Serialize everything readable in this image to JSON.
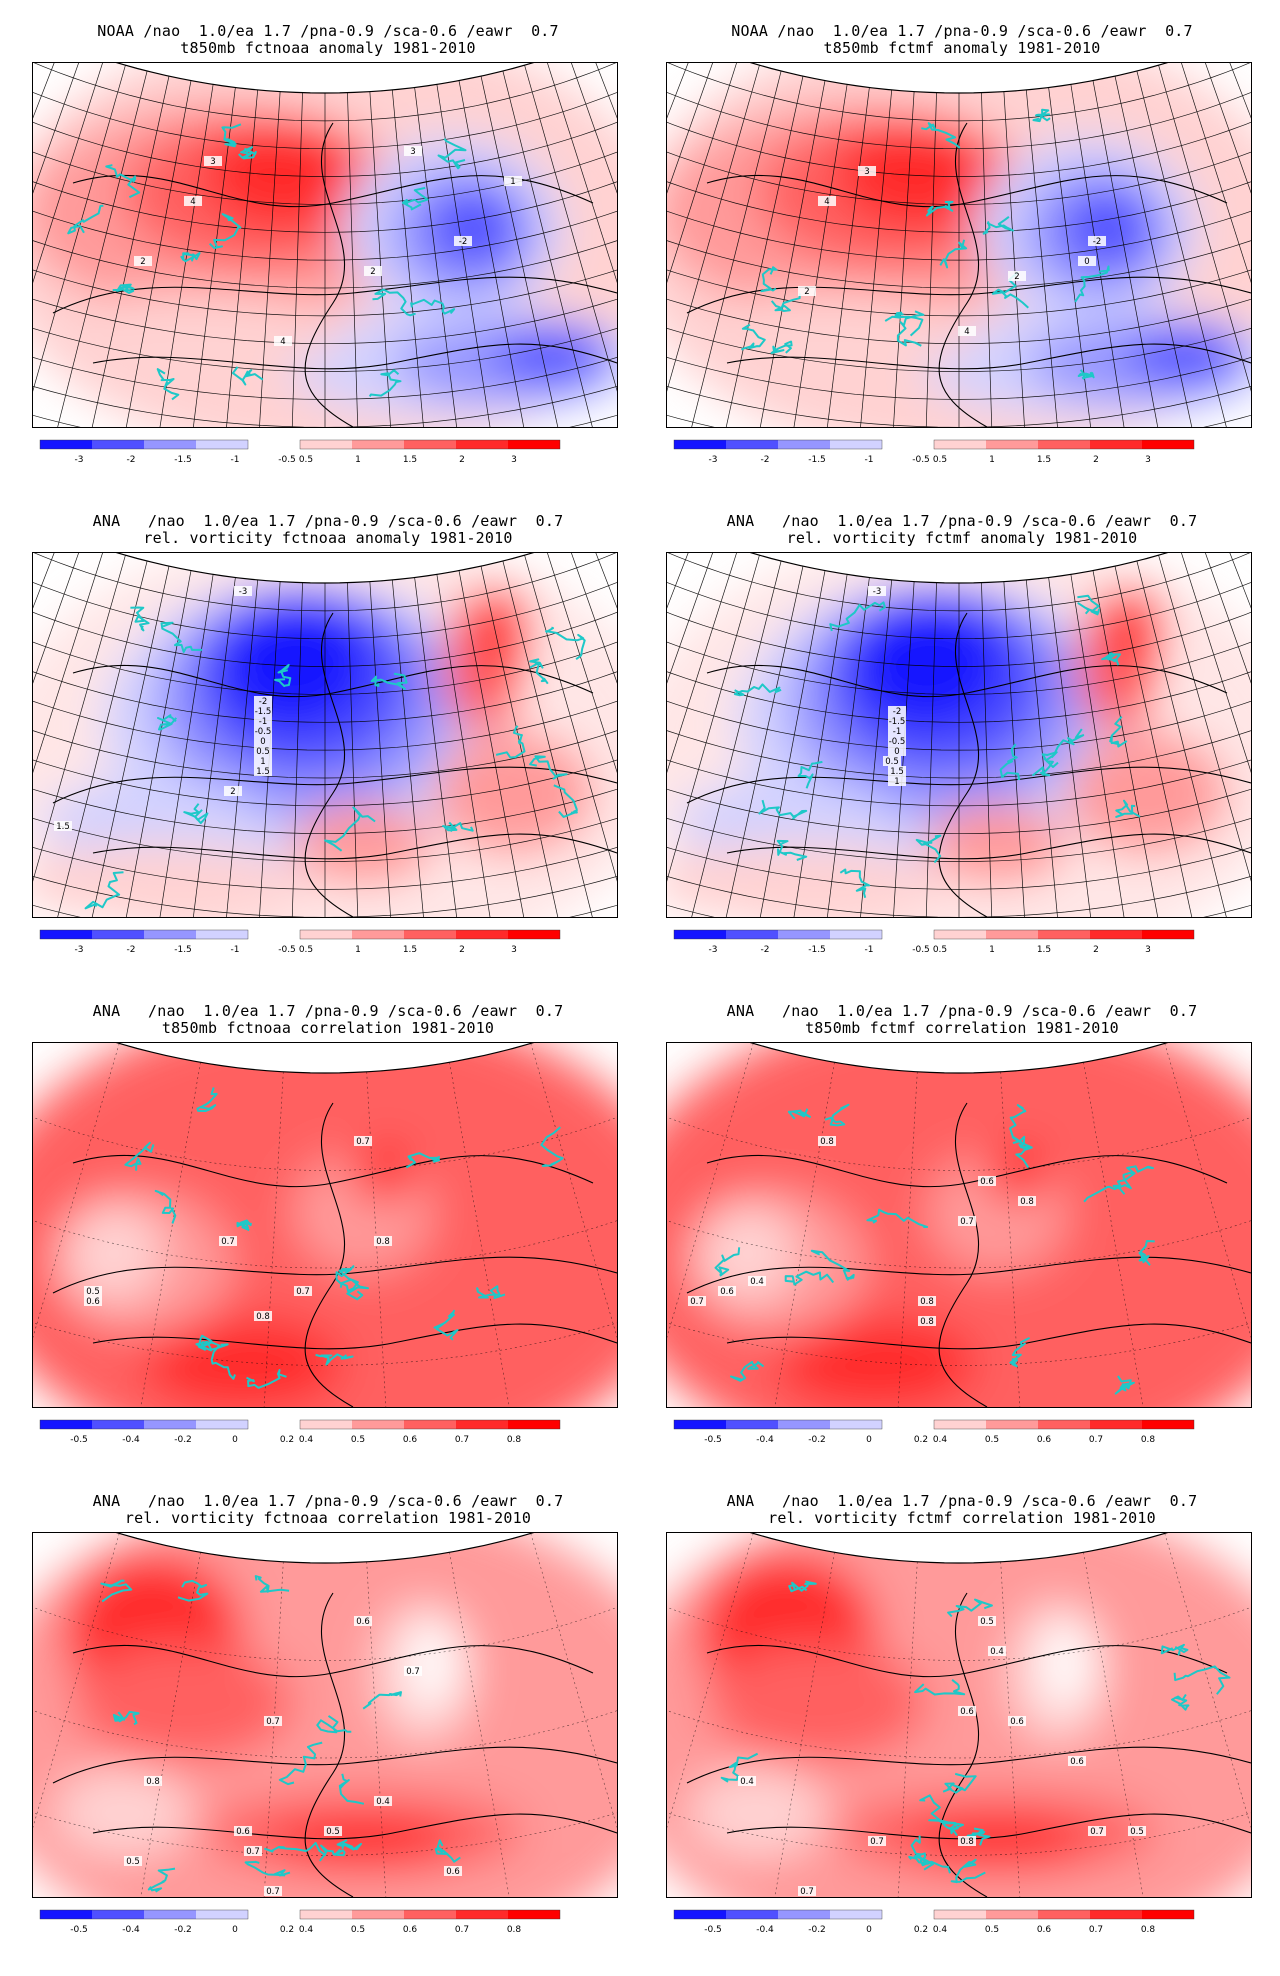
{
  "panels": [
    {
      "id": "p1",
      "title1": "NOAA /nao  1.0/ea 1.7 /pna-0.9 /sca-0.6 /eawr  0.7",
      "title2": "t850mb fctnoaa anomaly 1981-2010",
      "variant": "anomaly",
      "colorbar": [
        "-3",
        "-2",
        "-1.5",
        "-1",
        "-0.5",
        "0.5",
        "1",
        "1.5",
        "2",
        "3"
      ],
      "contour_labels": [
        "4",
        "-2",
        "2",
        "4",
        "3",
        "3",
        "2",
        "1"
      ]
    },
    {
      "id": "p2",
      "title1": "NOAA /nao  1.0/ea 1.7 /pna-0.9 /sca-0.6 /eawr  0.7",
      "title2": "t850mb fctmf anomaly 1981-2010",
      "variant": "anomaly",
      "colorbar": [
        "-3",
        "-2",
        "-1.5",
        "-1",
        "-0.5",
        "0.5",
        "1",
        "1.5",
        "2",
        "3"
      ],
      "contour_labels": [
        "4",
        "-2",
        "0",
        "2",
        "4",
        "3",
        "2"
      ]
    },
    {
      "id": "p3",
      "title1": "ANA   /nao  1.0/ea 1.7 /pna-0.9 /sca-0.6 /eawr  0.7",
      "title2": "rel. vorticity fctnoaa anomaly 1981-2010",
      "variant": "vorticity",
      "colorbar": [
        "-3",
        "-2",
        "-1.5",
        "-1",
        "-0.5",
        "0.5",
        "1",
        "1.5",
        "2",
        "3"
      ],
      "contour_labels": [
        "-3",
        "-2",
        "-1.5",
        "-1",
        "-0.5",
        "0",
        "0.5",
        "1",
        "1.5",
        "2",
        "1.5"
      ]
    },
    {
      "id": "p4",
      "title1": "ANA   /nao  1.0/ea 1.7 /pna-0.9 /sca-0.6 /eawr  0.7",
      "title2": "rel. vorticity fctmf anomaly 1981-2010",
      "variant": "vorticity",
      "colorbar": [
        "-3",
        "-2",
        "-1.5",
        "-1",
        "-0.5",
        "0.5",
        "1",
        "1.5",
        "2",
        "3"
      ],
      "contour_labels": [
        "-3",
        "-2",
        "-1.5",
        "-1",
        "-0.5",
        "0",
        "0.5",
        "1",
        "1.5"
      ]
    },
    {
      "id": "p5",
      "title1": "ANA   /nao  1.0/ea 1.7 /pna-0.9 /sca-0.6 /eawr  0.7",
      "title2": "t850mb fctnoaa correlation 1981-2010",
      "variant": "correlation",
      "colorbar": [
        "-0.5",
        "-0.4",
        "-0.2",
        "0",
        "0.2",
        "0.4",
        "0.5",
        "0.6",
        "0.7",
        "0.8"
      ],
      "contour_labels": [
        "0.7",
        "0.7",
        "0.8",
        "0.6",
        "0.5",
        "0.7",
        "0.8"
      ]
    },
    {
      "id": "p6",
      "title1": "ANA   /nao  1.0/ea 1.7 /pna-0.9 /sca-0.6 /eawr  0.7",
      "title2": "t850mb fctmf correlation 1981-2010",
      "variant": "correlation",
      "colorbar": [
        "-0.5",
        "-0.4",
        "-0.2",
        "0",
        "0.2",
        "0.4",
        "0.5",
        "0.6",
        "0.7",
        "0.8"
      ],
      "contour_labels": [
        "0.8",
        "0.6",
        "0.8",
        "0.7",
        "0.4",
        "0.6",
        "0.7",
        "0.8",
        "0.8"
      ]
    },
    {
      "id": "p7",
      "title1": "ANA   /nao  1.0/ea 1.7 /pna-0.9 /sca-0.6 /eawr  0.7",
      "title2": "rel. vorticity fctnoaa correlation 1981-2010",
      "variant": "corr2",
      "colorbar": [
        "-0.5",
        "-0.4",
        "-0.2",
        "0",
        "0.2",
        "0.4",
        "0.5",
        "0.6",
        "0.7",
        "0.8"
      ],
      "contour_labels": [
        "0.6",
        "0.7",
        "0.8",
        "0.7",
        "0.4",
        "0.5",
        "0.6",
        "0.5",
        "0.6",
        "0.7",
        "0.7"
      ]
    },
    {
      "id": "p8",
      "title1": "ANA   /nao  1.0/ea 1.7 /pna-0.9 /sca-0.6 /eawr  0.7",
      "title2": "rel. vorticity fctmf correlation 1981-2010",
      "variant": "corr2",
      "colorbar": [
        "-0.5",
        "-0.4",
        "-0.2",
        "0",
        "0.2",
        "0.4",
        "0.5",
        "0.6",
        "0.7",
        "0.8"
      ],
      "contour_labels": [
        "0.5",
        "0.4",
        "0.6",
        "0.6",
        "0.8",
        "0.4",
        "0.7",
        "0.6",
        "0.7",
        "0.5",
        "0.7"
      ]
    }
  ],
  "colors": {
    "blue_strong": "#1414ff",
    "blue_mid": "#5050ff",
    "blue_light": "#9696ff",
    "blue_pale": "#d2d2ff",
    "red_pale": "#ffd2d2",
    "red_light": "#ff9a9a",
    "red_mid": "#ff6060",
    "red_strong": "#ff2a2a",
    "red_max": "#ff0000",
    "coast": "#1ec8c8",
    "grid": "#000000"
  }
}
